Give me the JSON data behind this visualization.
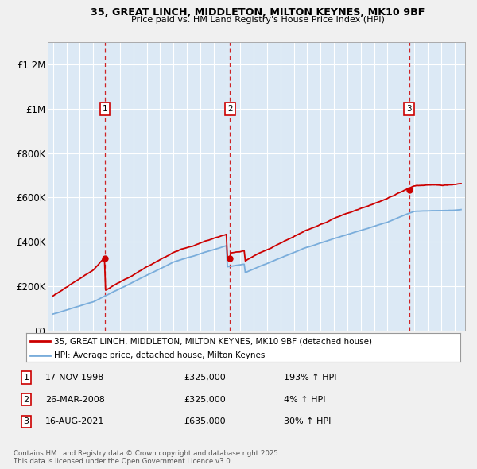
{
  "title": "35, GREAT LINCH, MIDDLETON, MILTON KEYNES, MK10 9BF",
  "subtitle": "Price paid vs. HM Land Registry's House Price Index (HPI)",
  "bg_color": "#dce9f5",
  "fig_bg_color": "#f0f0f0",
  "ylim": [
    0,
    1300000
  ],
  "yticks": [
    0,
    200000,
    400000,
    600000,
    800000,
    1000000,
    1200000
  ],
  "ytick_labels": [
    "£0",
    "£200K",
    "£400K",
    "£600K",
    "£800K",
    "£1M",
    "£1.2M"
  ],
  "sale_dates": [
    1998.88,
    2008.23,
    2021.62
  ],
  "sale_prices": [
    325000,
    325000,
    635000
  ],
  "sale_labels": [
    "1",
    "2",
    "3"
  ],
  "sale_info": [
    {
      "label": "1",
      "date": "17-NOV-1998",
      "price": "£325,000",
      "hpi": "193% ↑ HPI"
    },
    {
      "label": "2",
      "date": "26-MAR-2008",
      "price": "£325,000",
      "hpi": "4% ↑ HPI"
    },
    {
      "label": "3",
      "date": "16-AUG-2021",
      "price": "£635,000",
      "hpi": "30% ↑ HPI"
    }
  ],
  "legend_line1": "35, GREAT LINCH, MIDDLETON, MILTON KEYNES, MK10 9BF (detached house)",
  "legend_line2": "HPI: Average price, detached house, Milton Keynes",
  "footer": "Contains HM Land Registry data © Crown copyright and database right 2025.\nThis data is licensed under the Open Government Licence v3.0.",
  "red_color": "#cc0000",
  "blue_color": "#7aaddb",
  "grid_color": "#ffffff",
  "xmin": 1994.6,
  "xmax": 2025.8,
  "xtick_start": 1995,
  "xtick_end": 2025
}
